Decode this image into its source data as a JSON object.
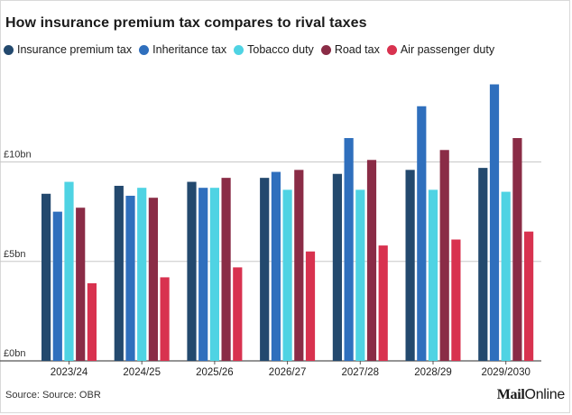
{
  "title": "How insurance premium tax compares to rival taxes",
  "source": "Source: Source: OBR",
  "logo": {
    "part1": "Mail",
    "part2": "Online"
  },
  "chart_data": {
    "type": "bar",
    "categories": [
      "2023/24",
      "2024/25",
      "2025/26",
      "2026/27",
      "2027/28",
      "2028/29",
      "2029/2030"
    ],
    "ylim": [
      0,
      14.5
    ],
    "yticks": [
      0,
      5,
      10
    ],
    "ytick_labels": [
      "£0bn",
      "£5bn",
      "£10bn"
    ],
    "grid": true,
    "legend_position": "top-left",
    "series": [
      {
        "name": "Insurance premium tax",
        "color": "#23496e",
        "values": [
          8.4,
          8.8,
          9.0,
          9.2,
          9.4,
          9.6,
          9.7
        ]
      },
      {
        "name": "Inheritance tax",
        "color": "#2f6fbd",
        "values": [
          7.5,
          8.3,
          8.7,
          9.5,
          11.2,
          12.8,
          13.9
        ]
      },
      {
        "name": "Tobacco duty",
        "color": "#4fd3e3",
        "values": [
          9.0,
          8.7,
          8.7,
          8.6,
          8.6,
          8.6,
          8.5
        ]
      },
      {
        "name": "Road tax",
        "color": "#8a2c46",
        "values": [
          7.7,
          8.2,
          9.2,
          9.6,
          10.1,
          10.6,
          11.2
        ]
      },
      {
        "name": "Air passenger duty",
        "color": "#d8324f",
        "values": [
          3.9,
          4.2,
          4.7,
          5.5,
          5.8,
          6.1,
          6.5
        ]
      }
    ]
  }
}
